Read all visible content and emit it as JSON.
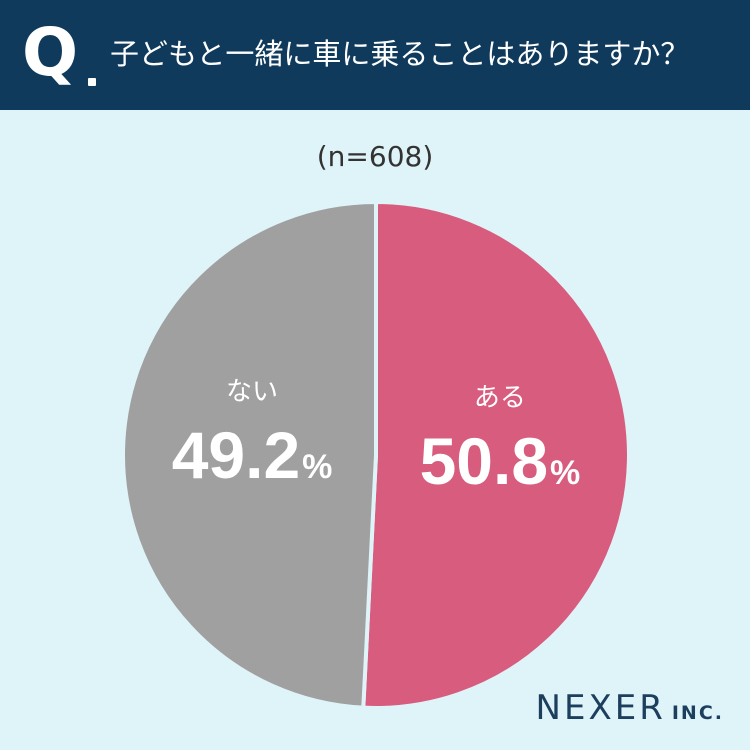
{
  "header": {
    "q_letter": "Q",
    "question": "子どもと一緒に車に乗ることはありますか？"
  },
  "sample_label": "(n=608)",
  "chart_data": {
    "type": "pie",
    "title": "子どもと一緒に車に乗ることはありますか？",
    "n_label": "(n=608)",
    "slices": [
      {
        "label": "ある",
        "value": 50.8,
        "display": "50.8",
        "color": "#d85c7e"
      },
      {
        "label": "ない",
        "value": 49.2,
        "display": "49.2",
        "color": "#a0a0a0"
      }
    ],
    "unit": "%",
    "start": "top",
    "direction": "clockwise"
  },
  "logo": {
    "main": "NEXER",
    "sub": "INC."
  },
  "colors": {
    "header_bg": "#0f3a5c",
    "page_bg": "#dff4f8",
    "label_text": "#ffffff"
  }
}
